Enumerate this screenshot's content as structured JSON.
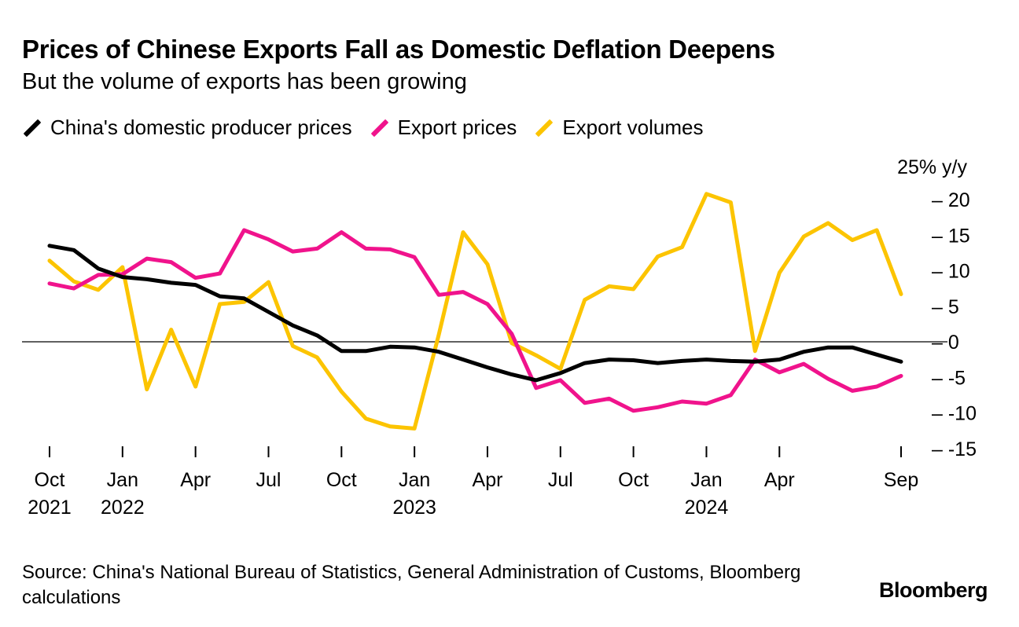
{
  "title": "Prices of Chinese Exports Fall as Domestic Deflation Deepens",
  "subtitle": "But the volume of exports has been growing",
  "source": "Source: China's National Bureau of Statistics, General Administration of Customs, Bloomberg calculations",
  "logo": "Bloomberg",
  "chart_data": {
    "type": "line",
    "title": "Prices of Chinese Exports Fall as Domestic Deflation Deepens",
    "ylabel": "% y/y",
    "y_unit_label": "25% y/y",
    "ylim": [
      -15,
      25
    ],
    "yticks": [
      20,
      15,
      10,
      5,
      0,
      -5,
      -10,
      -15
    ],
    "x": [
      "2021-10",
      "2021-11",
      "2021-12",
      "2022-01",
      "2022-02",
      "2022-03",
      "2022-04",
      "2022-05",
      "2022-06",
      "2022-07",
      "2022-08",
      "2022-09",
      "2022-10",
      "2022-11",
      "2022-12",
      "2023-01",
      "2023-02",
      "2023-03",
      "2023-04",
      "2023-05",
      "2023-06",
      "2023-07",
      "2023-08",
      "2023-09",
      "2023-10",
      "2023-11",
      "2023-12",
      "2024-01",
      "2024-02",
      "2024-03",
      "2024-04",
      "2024-05",
      "2024-06",
      "2024-07",
      "2024-08",
      "2024-09"
    ],
    "xticks": [
      {
        "i": 0,
        "l1": "Oct",
        "l2": "2021"
      },
      {
        "i": 3,
        "l1": "Jan",
        "l2": "2022"
      },
      {
        "i": 6,
        "l1": "Apr",
        "l2": ""
      },
      {
        "i": 9,
        "l1": "Jul",
        "l2": ""
      },
      {
        "i": 12,
        "l1": "Oct",
        "l2": ""
      },
      {
        "i": 15,
        "l1": "Jan",
        "l2": "2023"
      },
      {
        "i": 18,
        "l1": "Apr",
        "l2": ""
      },
      {
        "i": 21,
        "l1": "Jul",
        "l2": ""
      },
      {
        "i": 24,
        "l1": "Oct",
        "l2": ""
      },
      {
        "i": 27,
        "l1": "Jan",
        "l2": "2024"
      },
      {
        "i": 30,
        "l1": "Apr",
        "l2": ""
      },
      {
        "i": 35,
        "l1": "Sep",
        "l2": ""
      }
    ],
    "legend_position": "top-left",
    "series": [
      {
        "name": "China's domestic producer prices",
        "color": "#000000",
        "values": [
          13.5,
          12.9,
          10.3,
          9.1,
          8.8,
          8.3,
          8.0,
          6.4,
          6.1,
          4.2,
          2.3,
          0.9,
          -1.3,
          -1.3,
          -0.7,
          -0.8,
          -1.4,
          -2.5,
          -3.6,
          -4.6,
          -5.4,
          -4.4,
          -3.0,
          -2.5,
          -2.6,
          -3.0,
          -2.7,
          -2.5,
          -2.7,
          -2.8,
          -2.5,
          -1.4,
          -0.8,
          -0.8,
          -1.8,
          -2.8
        ]
      },
      {
        "name": "Export prices",
        "color": "#f0138c",
        "values": [
          8.2,
          7.5,
          9.4,
          9.5,
          11.7,
          11.2,
          9.0,
          9.6,
          15.7,
          14.4,
          12.7,
          13.1,
          15.4,
          13.1,
          13.0,
          11.9,
          6.6,
          7.0,
          5.3,
          1.1,
          -6.5,
          -5.4,
          -8.6,
          -8.0,
          -9.7,
          -9.2,
          -8.4,
          -8.7,
          -7.5,
          -2.5,
          -4.3,
          -3.1,
          -5.2,
          -6.9,
          -6.3,
          -4.8
        ]
      },
      {
        "name": "Export volumes",
        "color": "#fcc400",
        "values": [
          11.4,
          8.5,
          7.3,
          10.5,
          -6.7,
          1.7,
          -6.3,
          5.3,
          5.6,
          8.4,
          -0.6,
          -2.2,
          -7.0,
          -10.8,
          -11.9,
          -12.2,
          1.0,
          15.4,
          10.9,
          -0.2,
          -1.9,
          -3.8,
          5.9,
          7.8,
          7.4,
          12.0,
          13.3,
          20.8,
          19.6,
          -1.3,
          9.7,
          14.8,
          16.7,
          14.3,
          15.7,
          6.7
        ]
      }
    ]
  }
}
